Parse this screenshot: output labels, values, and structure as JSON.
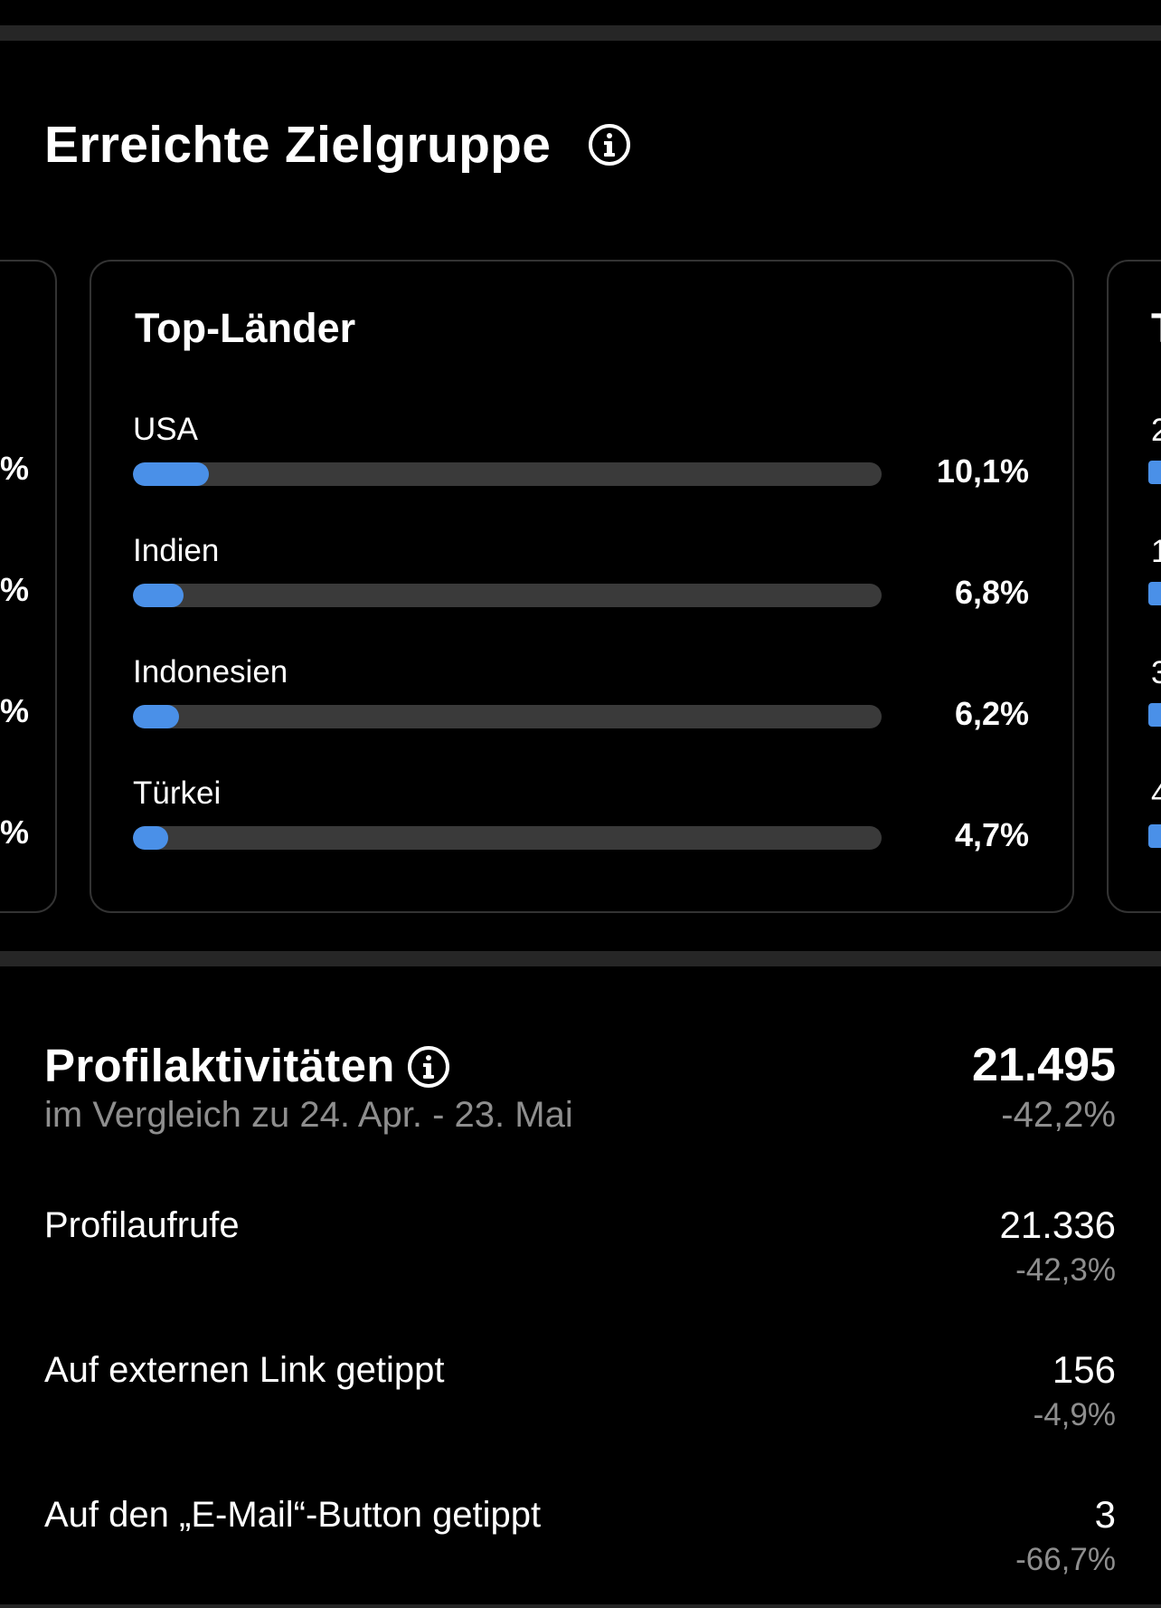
{
  "audience": {
    "title": "Erreichte Zielgruppe",
    "info_icon": "info-circle-icon",
    "card": {
      "title": "Top-Länder",
      "rows": [
        {
          "label": "USA",
          "percent": "10,1%",
          "value": 10.1
        },
        {
          "label": "Indien",
          "percent": "6,8%",
          "value": 6.8
        },
        {
          "label": "Indonesien",
          "percent": "6,2%",
          "value": 6.2
        },
        {
          "label": "Türkei",
          "percent": "4,7%",
          "value": 4.7
        }
      ]
    },
    "left_card_partial": {
      "marks": [
        "%",
        "%",
        "%",
        "%"
      ]
    },
    "right_card_partial": {
      "title_char": "T",
      "digits": [
        "2",
        "1",
        "3",
        "4"
      ]
    }
  },
  "profile": {
    "title": "Profilaktivitäten",
    "info_icon": "info-circle-icon",
    "comparison": "im Vergleich zu 24. Apr. - 23. Mai",
    "total": "21.495",
    "total_change": "-42,2%",
    "metrics": [
      {
        "label": "Profilaufrufe",
        "value": "21.336",
        "change": "-42,3%"
      },
      {
        "label": "Auf externen Link getippt",
        "value": "156",
        "change": "-4,9%"
      },
      {
        "label": "Auf den „E-Mail“-Button getippt",
        "value": "3",
        "change": "-66,7%"
      }
    ]
  },
  "colors": {
    "background": "#000000",
    "bar_fill": "#4a90e8",
    "bar_track": "#3a3a3a",
    "muted_text": "#8e8e8e"
  }
}
